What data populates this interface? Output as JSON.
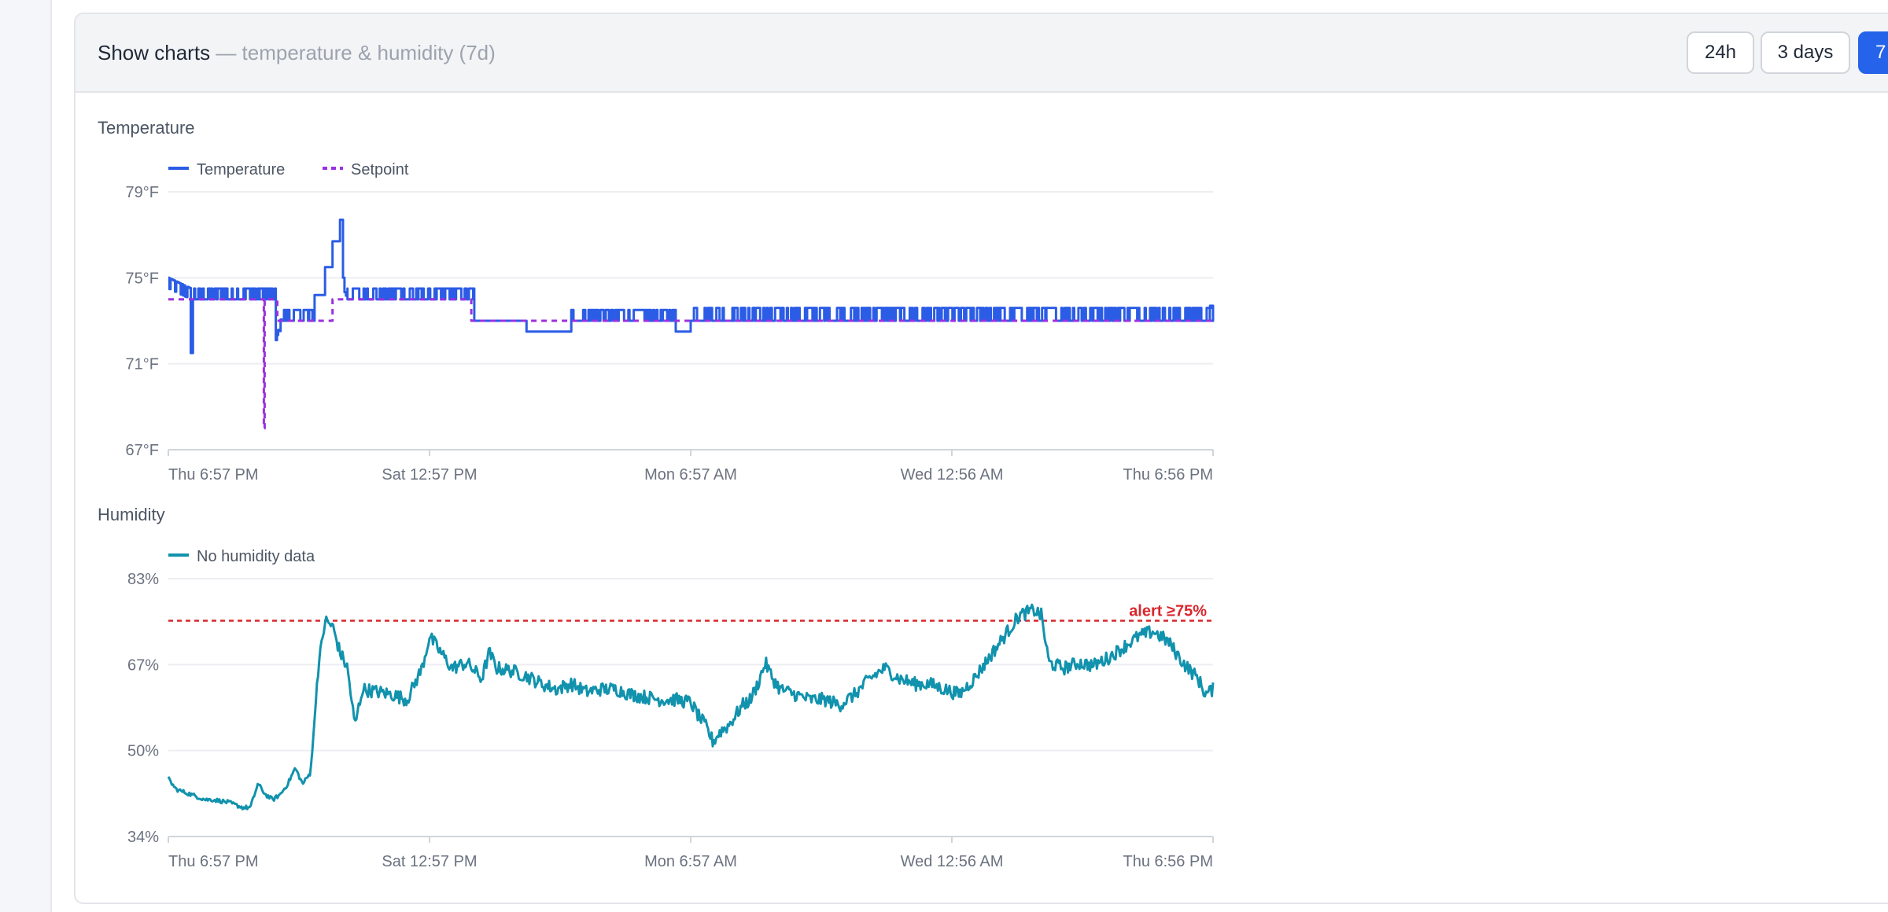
{
  "header": {
    "title": "Show charts",
    "subtitle": "— temperature & humidity (7d)",
    "buttons": [
      {
        "label": "24h",
        "active": false
      },
      {
        "label": "3 days",
        "active": false
      },
      {
        "label": "7",
        "active": true
      }
    ]
  },
  "colors": {
    "temperature": "#2b5ce6",
    "setpoint": "#9b30e0",
    "humidity": "#1192ad",
    "alert": "#d9262c",
    "grid": "#eceef1",
    "axis_text": "#6b7280"
  },
  "chart_data": [
    {
      "type": "line",
      "title": "Temperature",
      "x_ticks": [
        "Thu 6:57 PM",
        "Sat 12:57 PM",
        "Mon 6:57 AM",
        "Wed 12:56 AM",
        "Thu 6:56 PM"
      ],
      "x_range_days": [
        0,
        7
      ],
      "y_ticks": [
        "79°F",
        "75°F",
        "71°F",
        "67°F"
      ],
      "ylim": [
        67,
        79
      ],
      "legend": "top-left",
      "grid": true,
      "series": [
        {
          "name": "Temperature",
          "style": "solid",
          "segments": [
            {
              "x": [
                0,
                0.15
              ],
              "y": [
                74.5,
                74.0
              ],
              "noise": 0.5
            },
            {
              "x": [
                0.15,
                0.165
              ],
              "y": [
                71.5,
                71.5
              ],
              "noise": 0
            },
            {
              "x": [
                0.165,
                0.72
              ],
              "y": [
                74.0,
                74.0
              ],
              "noise": 0.5
            },
            {
              "x": [
                0.72,
                0.76
              ],
              "y": [
                71.8,
                73.0
              ],
              "noise": 0.3
            },
            {
              "x": [
                0.76,
                0.98
              ],
              "y": [
                73.0,
                73.0
              ],
              "noise": 0.5
            },
            {
              "x": [
                0.98,
                1.05
              ],
              "y": [
                74.2,
                75.0
              ],
              "noise": 0
            },
            {
              "x": [
                1.05,
                1.1
              ],
              "y": [
                75.5,
                76.0
              ],
              "noise": 0
            },
            {
              "x": [
                1.1,
                1.15
              ],
              "y": [
                76.7,
                76.7
              ],
              "noise": 0
            },
            {
              "x": [
                1.15,
                1.17
              ],
              "y": [
                77.7,
                77.7
              ],
              "noise": 0
            },
            {
              "x": [
                1.17,
                1.2
              ],
              "y": [
                74.5,
                74.0
              ],
              "noise": 0.5
            },
            {
              "x": [
                1.2,
                2.05
              ],
              "y": [
                74.0,
                74.0
              ],
              "noise": 0.5
            },
            {
              "x": [
                2.05,
                2.4
              ],
              "y": [
                73.0,
                73.0
              ],
              "noise": 0
            },
            {
              "x": [
                2.4,
                2.7
              ],
              "y": [
                72.5,
                72.5
              ],
              "noise": 0
            },
            {
              "x": [
                2.7,
                3.4
              ],
              "y": [
                73.0,
                73.0
              ],
              "noise": 0.5
            },
            {
              "x": [
                3.4,
                3.5
              ],
              "y": [
                72.5,
                72.5
              ],
              "noise": 0
            },
            {
              "x": [
                3.5,
                7.0
              ],
              "y": [
                73.0,
                73.0
              ],
              "noise": 0.6
            },
            {
              "x": [
                6.98,
                7.0
              ],
              "y": [
                73.7,
                73.2
              ],
              "noise": 0
            }
          ]
        },
        {
          "name": "Setpoint",
          "style": "dashed",
          "segments": [
            {
              "x": [
                0,
                0.64
              ],
              "y": [
                74.0,
                74.0
              ],
              "noise": 0
            },
            {
              "x": [
                0.64,
                0.645
              ],
              "y": [
                68.0,
                68.0
              ],
              "noise": 0
            },
            {
              "x": [
                0.645,
                0.73
              ],
              "y": [
                74.0,
                74.0
              ],
              "noise": 0
            },
            {
              "x": [
                0.73,
                1.1
              ],
              "y": [
                73.0,
                73.0
              ],
              "noise": 0
            },
            {
              "x": [
                1.1,
                2.03
              ],
              "y": [
                74.0,
                74.0
              ],
              "noise": 0
            },
            {
              "x": [
                2.03,
                7.0
              ],
              "y": [
                73.0,
                73.0
              ],
              "noise": 0
            }
          ]
        }
      ]
    },
    {
      "type": "line",
      "title": "Humidity",
      "x_ticks": [
        "Thu 6:57 PM",
        "Sat 12:57 PM",
        "Mon 6:57 AM",
        "Wed 12:56 AM",
        "Thu 6:56 PM"
      ],
      "x_range_days": [
        0,
        7
      ],
      "y_ticks": [
        "83%",
        "67%",
        "50%",
        "34%"
      ],
      "ylim": [
        34,
        83
      ],
      "legend": "top-left",
      "grid": true,
      "threshold": {
        "value": 75,
        "label": "alert ≥75%"
      },
      "series": [
        {
          "name": "No humidity data",
          "style": "solid",
          "points": [
            [
              0,
              45
            ],
            [
              0.05,
              43
            ],
            [
              0.15,
              42
            ],
            [
              0.2,
              41.5
            ],
            [
              0.25,
              41
            ],
            [
              0.3,
              41
            ],
            [
              0.4,
              40.5
            ],
            [
              0.5,
              39.5
            ],
            [
              0.55,
              39.5
            ],
            [
              0.6,
              44
            ],
            [
              0.65,
              42
            ],
            [
              0.7,
              41
            ],
            [
              0.75,
              42
            ],
            [
              0.8,
              44
            ],
            [
              0.85,
              47
            ],
            [
              0.9,
              44
            ],
            [
              0.95,
              46
            ],
            [
              0.97,
              52
            ],
            [
              1.0,
              65
            ],
            [
              1.05,
              75
            ],
            [
              1.1,
              74
            ],
            [
              1.15,
              69
            ],
            [
              1.2,
              66
            ],
            [
              1.25,
              55
            ],
            [
              1.3,
              62
            ],
            [
              1.4,
              61.5
            ],
            [
              1.5,
              61
            ],
            [
              1.6,
              60
            ],
            [
              1.7,
              66
            ],
            [
              1.75,
              72
            ],
            [
              1.8,
              70
            ],
            [
              1.9,
              66
            ],
            [
              2.0,
              67
            ],
            [
              2.1,
              64
            ],
            [
              2.15,
              69
            ],
            [
              2.2,
              66
            ],
            [
              2.3,
              65.5
            ],
            [
              2.4,
              64.5
            ],
            [
              2.5,
              63
            ],
            [
              2.6,
              62
            ],
            [
              2.7,
              63
            ],
            [
              2.8,
              61.5
            ],
            [
              2.9,
              62
            ],
            [
              3.0,
              62
            ],
            [
              3.1,
              61
            ],
            [
              3.2,
              60.5
            ],
            [
              3.3,
              60
            ],
            [
              3.4,
              60
            ],
            [
              3.5,
              59.5
            ],
            [
              3.55,
              57
            ],
            [
              3.6,
              55
            ],
            [
              3.65,
              52
            ],
            [
              3.7,
              54
            ],
            [
              3.75,
              55
            ],
            [
              3.8,
              57
            ],
            [
              3.85,
              59
            ],
            [
              3.9,
              60
            ],
            [
              3.95,
              63
            ],
            [
              4.0,
              67
            ],
            [
              4.05,
              64
            ],
            [
              4.1,
              62
            ],
            [
              4.2,
              61
            ],
            [
              4.3,
              60
            ],
            [
              4.4,
              60
            ],
            [
              4.5,
              59
            ],
            [
              4.6,
              61
            ],
            [
              4.7,
              64
            ],
            [
              4.8,
              66
            ],
            [
              4.9,
              64
            ],
            [
              5.0,
              63
            ],
            [
              5.1,
              63
            ],
            [
              5.2,
              62
            ],
            [
              5.3,
              61
            ],
            [
              5.4,
              64
            ],
            [
              5.5,
              68
            ],
            [
              5.6,
              72
            ],
            [
              5.7,
              76
            ],
            [
              5.8,
              77
            ],
            [
              5.85,
              76
            ],
            [
              5.9,
              67
            ],
            [
              6.0,
              66
            ],
            [
              6.1,
              67
            ],
            [
              6.2,
              66.5
            ],
            [
              6.3,
              68
            ],
            [
              6.4,
              70
            ],
            [
              6.5,
              72
            ],
            [
              6.6,
              73
            ],
            [
              6.7,
              71
            ],
            [
              6.8,
              67
            ],
            [
              6.9,
              64
            ],
            [
              6.95,
              61
            ],
            [
              7.0,
              62
            ]
          ]
        }
      ]
    }
  ]
}
